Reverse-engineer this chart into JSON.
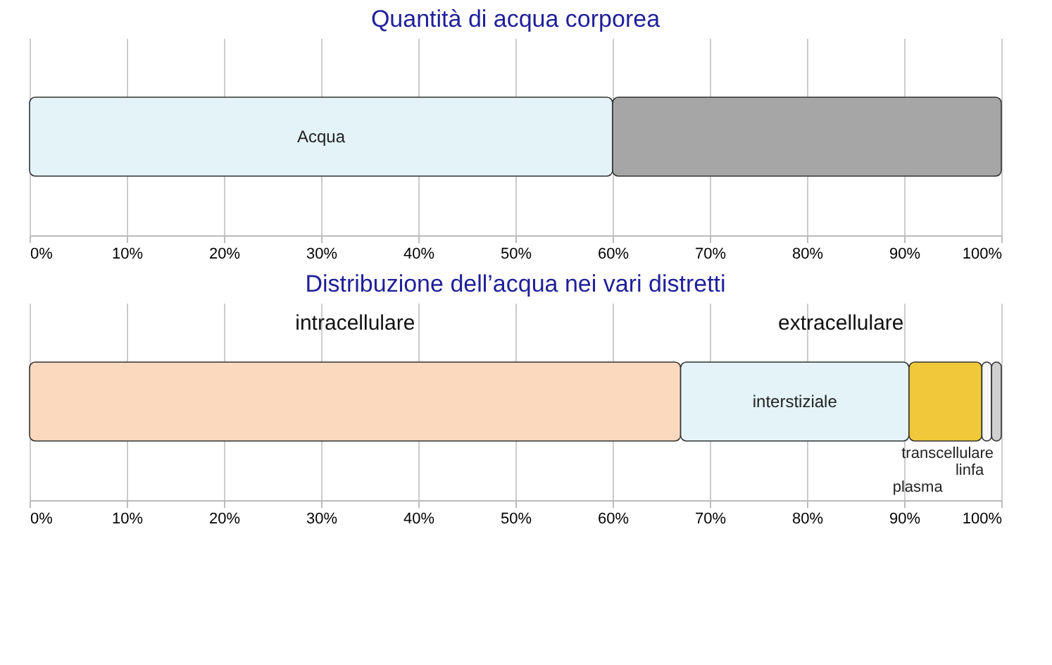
{
  "chart_data": [
    {
      "type": "bar",
      "title": "Quantità di acqua corporea",
      "orientation": "horizontal",
      "stacked": true,
      "categories": [
        null
      ],
      "series": [
        {
          "name": "Acqua",
          "color": "#e3f3f8",
          "values": [
            60
          ]
        },
        {
          "color": "#a6a6a6",
          "values": [
            40
          ]
        }
      ],
      "xlim": [
        0,
        100
      ],
      "xticks": [
        {
          "value": 0,
          "label": "0%"
        },
        {
          "value": 10,
          "label": "10%"
        },
        {
          "value": 20,
          "label": "20%"
        },
        {
          "value": 30,
          "label": "30%"
        },
        {
          "value": 40,
          "label": "40%"
        },
        {
          "value": 50,
          "label": "50%"
        },
        {
          "value": 60,
          "label": "60%"
        },
        {
          "value": 70,
          "label": "70%"
        },
        {
          "value": 80,
          "label": "80%"
        },
        {
          "value": 90,
          "label": "90%"
        },
        {
          "value": 100,
          "label": "100%"
        }
      ],
      "grid": "x",
      "legend": false
    },
    {
      "type": "bar",
      "title": "Distribuzione dell’acqua nei vari distretti",
      "orientation": "horizontal",
      "stacked": true,
      "categories": [
        null
      ],
      "series": [
        {
          "color": "#fbd9bf",
          "values": [
            67
          ]
        },
        {
          "name": "interstiziale",
          "color": "#e3f3f8",
          "values": [
            23.5
          ]
        },
        {
          "name": "plasma",
          "color": "#f0c93a",
          "values": [
            7.5
          ]
        },
        {
          "name": "linfa",
          "color": "#f7f7f7",
          "values": [
            1
          ]
        },
        {
          "name": "transcellulare",
          "color": "#d0d0d0",
          "values": [
            1
          ]
        }
      ],
      "annotations": [
        "intracellulare",
        "extracellulare"
      ],
      "xlim": [
        0,
        100
      ],
      "xticks": [
        {
          "value": 0,
          "label": "0%"
        },
        {
          "value": 10,
          "label": "10%"
        },
        {
          "value": 20,
          "label": "20%"
        },
        {
          "value": 30,
          "label": "30%"
        },
        {
          "value": 40,
          "label": "40%"
        },
        {
          "value": 50,
          "label": "50%"
        },
        {
          "value": 60,
          "label": "60%"
        },
        {
          "value": 70,
          "label": "70%"
        },
        {
          "value": 80,
          "label": "80%"
        },
        {
          "value": 90,
          "label": "90%"
        },
        {
          "value": 100,
          "label": "100%"
        }
      ],
      "grid": "x",
      "legend": false
    }
  ]
}
